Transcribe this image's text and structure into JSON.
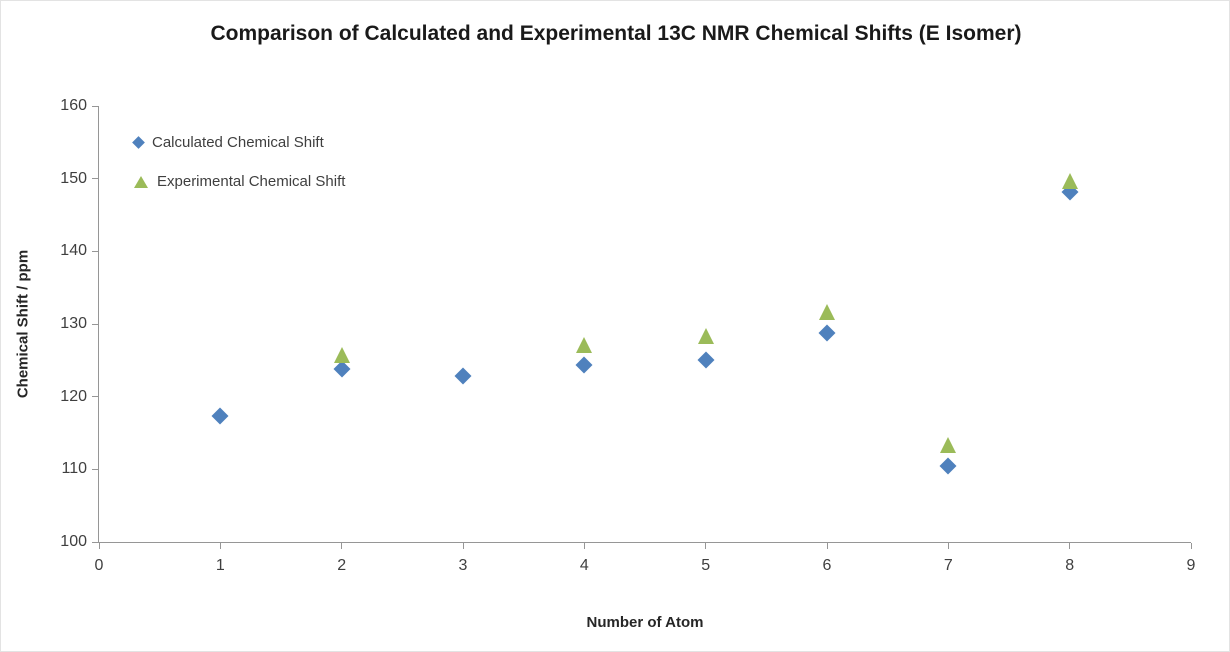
{
  "chart_data": {
    "type": "scatter",
    "title": "Comparison of Calculated and Experimental 13C NMR Chemical Shifts (E Isomer)",
    "xlabel": "Number of Atom",
    "ylabel": "Chemical Shift / ppm",
    "xlim": [
      0,
      9
    ],
    "ylim": [
      100,
      160
    ],
    "x_ticks": [
      0,
      1,
      2,
      3,
      4,
      5,
      6,
      7,
      8,
      9
    ],
    "y_ticks": [
      100,
      110,
      120,
      130,
      140,
      150,
      160
    ],
    "grid": false,
    "legend_position": "top-left-inside",
    "series": [
      {
        "name": "Calculated Chemical Shift",
        "marker": "diamond",
        "color": "#4F81BD",
        "points": [
          {
            "x": 1,
            "y": 117.3
          },
          {
            "x": 2,
            "y": 123.8
          },
          {
            "x": 3,
            "y": 122.8
          },
          {
            "x": 4,
            "y": 124.4
          },
          {
            "x": 5,
            "y": 125.0
          },
          {
            "x": 6,
            "y": 128.7
          },
          {
            "x": 7,
            "y": 110.4
          },
          {
            "x": 8,
            "y": 148.1
          }
        ]
      },
      {
        "name": "Experimental Chemical Shift",
        "marker": "triangle",
        "color": "#9BBB59",
        "points": [
          {
            "x": 2,
            "y": 125.7
          },
          {
            "x": 4,
            "y": 127.1
          },
          {
            "x": 5,
            "y": 128.4
          },
          {
            "x": 6,
            "y": 131.7
          },
          {
            "x": 7,
            "y": 113.3
          },
          {
            "x": 8,
            "y": 149.7
          }
        ]
      }
    ]
  }
}
